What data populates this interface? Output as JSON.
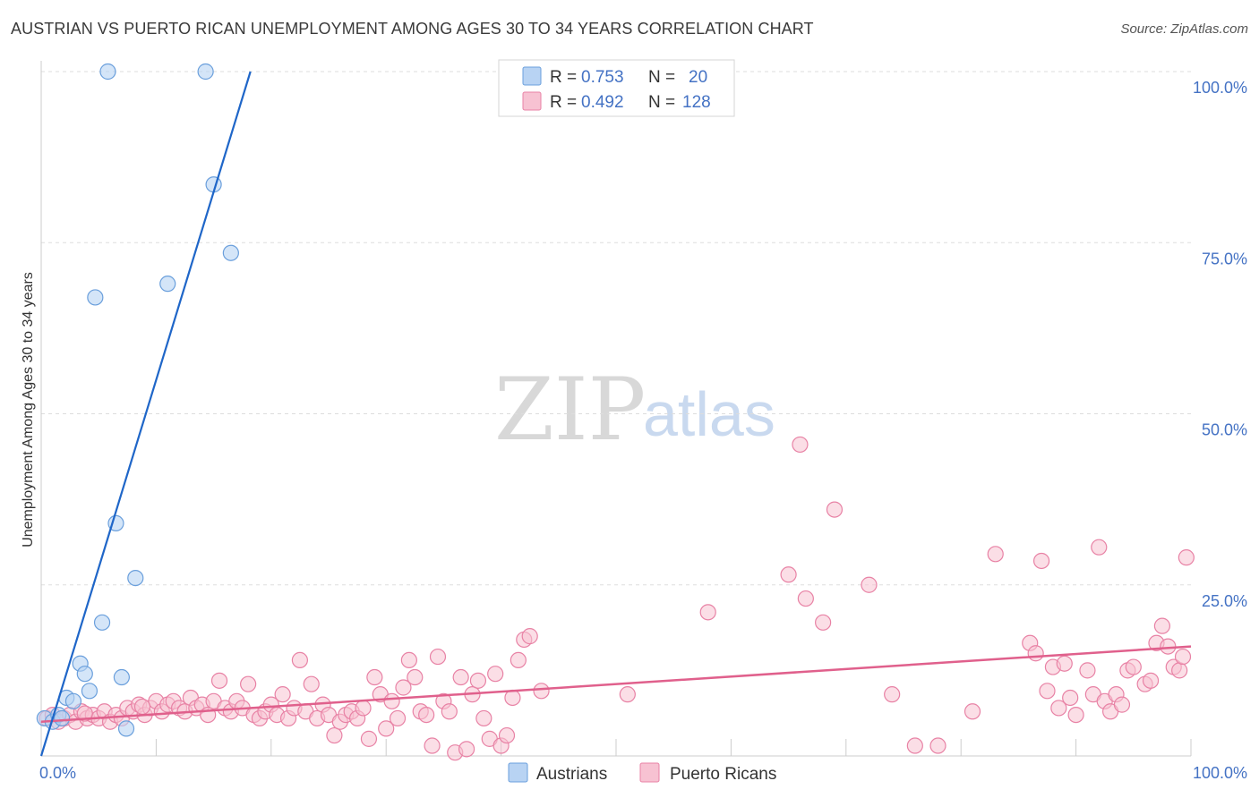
{
  "title": "AUSTRIAN VS PUERTO RICAN UNEMPLOYMENT AMONG AGES 30 TO 34 YEARS CORRELATION CHART",
  "source": "Source: ZipAtlas.com",
  "watermark": {
    "zip": "ZIP",
    "atlas": "atlas"
  },
  "colors": {
    "austrians_fill": "#b8d3f3",
    "austrians_stroke": "#6a9fdc",
    "austrians_line": "#1f66c8",
    "puerto_fill": "#f7c2d2",
    "puerto_stroke": "#e882a5",
    "puerto_line": "#e0608c",
    "grid": "#dddddd",
    "tick_text": "#4472c4"
  },
  "legend": {
    "rows": [
      {
        "r_label": "R =",
        "r_value": "0.753",
        "n_label": "N =",
        "n_value": "20"
      },
      {
        "r_label": "R =",
        "r_value": "0.492",
        "n_label": "N =",
        "n_value": "128"
      }
    ]
  },
  "chart_data": {
    "type": "scatter",
    "title": "AUSTRIAN VS PUERTO RICAN UNEMPLOYMENT AMONG AGES 30 TO 34 YEARS CORRELATION CHART",
    "xlabel": "",
    "ylabel": "Unemployment Among Ages 30 to 34 years",
    "xlim": [
      0,
      100
    ],
    "ylim": [
      0,
      100
    ],
    "x_tick_labels": [
      "0.0%",
      "100.0%"
    ],
    "y_tick_values": [
      25,
      50,
      75,
      100
    ],
    "y_tick_labels": [
      "25.0%",
      "50.0%",
      "75.0%",
      "100.0%"
    ],
    "grid": true,
    "series": [
      {
        "name": "Austrians",
        "r": 0.753,
        "n": 20,
        "trend": {
          "x": [
            0,
            18.2
          ],
          "y": [
            0,
            100
          ]
        },
        "points": [
          [
            0.3,
            5.5
          ],
          [
            1.0,
            5.0
          ],
          [
            1.5,
            6.0
          ],
          [
            2.2,
            8.5
          ],
          [
            2.8,
            8.0
          ],
          [
            3.4,
            13.5
          ],
          [
            3.8,
            12.0
          ],
          [
            4.2,
            9.5
          ],
          [
            4.7,
            67.0
          ],
          [
            5.3,
            19.5
          ],
          [
            5.8,
            100.0
          ],
          [
            6.5,
            34.0
          ],
          [
            7.0,
            11.5
          ],
          [
            7.4,
            4.0
          ],
          [
            8.2,
            26.0
          ],
          [
            11.0,
            69.0
          ],
          [
            14.3,
            100.0
          ],
          [
            15.0,
            83.5
          ],
          [
            16.5,
            73.5
          ],
          [
            1.8,
            5.5
          ]
        ]
      },
      {
        "name": "Puerto Ricans",
        "r": 0.492,
        "n": 128,
        "trend": {
          "x": [
            0,
            100
          ],
          "y": [
            5.0,
            16.0
          ]
        },
        "points": [
          [
            0.5,
            5.5
          ],
          [
            1.0,
            6.0
          ],
          [
            1.5,
            5.0
          ],
          [
            2.0,
            5.5
          ],
          [
            2.5,
            6.0
          ],
          [
            3.0,
            5.0
          ],
          [
            3.5,
            6.5
          ],
          [
            4.0,
            5.5
          ],
          [
            4.5,
            6.0
          ],
          [
            5.0,
            5.5
          ],
          [
            5.5,
            6.5
          ],
          [
            6.0,
            5.0
          ],
          [
            6.5,
            6.0
          ],
          [
            7.0,
            5.5
          ],
          [
            7.5,
            7.0
          ],
          [
            8.0,
            6.5
          ],
          [
            8.5,
            7.5
          ],
          [
            9.0,
            6.0
          ],
          [
            9.5,
            7.0
          ],
          [
            10.0,
            8.0
          ],
          [
            10.5,
            6.5
          ],
          [
            11.0,
            7.5
          ],
          [
            11.5,
            8.0
          ],
          [
            12.0,
            7.0
          ],
          [
            12.5,
            6.5
          ],
          [
            13.0,
            8.5
          ],
          [
            13.5,
            7.0
          ],
          [
            14.0,
            7.5
          ],
          [
            14.5,
            6.0
          ],
          [
            15.0,
            8.0
          ],
          [
            15.5,
            11.0
          ],
          [
            16.0,
            7.0
          ],
          [
            16.5,
            6.5
          ],
          [
            17.0,
            8.0
          ],
          [
            17.5,
            7.0
          ],
          [
            18.0,
            10.5
          ],
          [
            18.5,
            6.0
          ],
          [
            19.0,
            5.5
          ],
          [
            19.5,
            6.5
          ],
          [
            20.0,
            7.5
          ],
          [
            20.5,
            6.0
          ],
          [
            21.0,
            9.0
          ],
          [
            21.5,
            5.5
          ],
          [
            22.0,
            7.0
          ],
          [
            22.5,
            14.0
          ],
          [
            23.0,
            6.5
          ],
          [
            23.5,
            10.5
          ],
          [
            24.0,
            5.5
          ],
          [
            24.5,
            7.5
          ],
          [
            25.0,
            6.0
          ],
          [
            25.5,
            3.0
          ],
          [
            26.0,
            5.0
          ],
          [
            26.5,
            6.0
          ],
          [
            27.0,
            6.5
          ],
          [
            27.5,
            5.5
          ],
          [
            28.0,
            7.0
          ],
          [
            28.5,
            2.5
          ],
          [
            29.0,
            11.5
          ],
          [
            29.5,
            9.0
          ],
          [
            30.0,
            4.0
          ],
          [
            30.5,
            8.0
          ],
          [
            31.0,
            5.5
          ],
          [
            31.5,
            10.0
          ],
          [
            32.0,
            14.0
          ],
          [
            32.5,
            11.5
          ],
          [
            33.0,
            6.5
          ],
          [
            33.5,
            6.0
          ],
          [
            34.0,
            1.5
          ],
          [
            34.5,
            14.5
          ],
          [
            35.0,
            8.0
          ],
          [
            35.5,
            6.5
          ],
          [
            36.0,
            0.5
          ],
          [
            36.5,
            11.5
          ],
          [
            37.0,
            1.0
          ],
          [
            37.5,
            9.0
          ],
          [
            38.0,
            11.0
          ],
          [
            38.5,
            5.5
          ],
          [
            39.0,
            2.5
          ],
          [
            39.5,
            12.0
          ],
          [
            40.0,
            1.5
          ],
          [
            40.5,
            3.0
          ],
          [
            41.0,
            8.5
          ],
          [
            41.5,
            14.0
          ],
          [
            42.0,
            17.0
          ],
          [
            42.5,
            17.5
          ],
          [
            43.5,
            9.5
          ],
          [
            51.0,
            9.0
          ],
          [
            58.0,
            21.0
          ],
          [
            65.0,
            26.5
          ],
          [
            66.5,
            23.0
          ],
          [
            68.0,
            19.5
          ],
          [
            66.0,
            45.5
          ],
          [
            69.0,
            36.0
          ],
          [
            72.0,
            25.0
          ],
          [
            74.0,
            9.0
          ],
          [
            76.0,
            1.5
          ],
          [
            78.0,
            1.5
          ],
          [
            81.0,
            6.5
          ],
          [
            83.0,
            29.5
          ],
          [
            86.0,
            16.5
          ],
          [
            86.5,
            15.0
          ],
          [
            87.0,
            28.5
          ],
          [
            87.5,
            9.5
          ],
          [
            88.0,
            13.0
          ],
          [
            88.5,
            7.0
          ],
          [
            89.0,
            13.5
          ],
          [
            89.5,
            8.5
          ],
          [
            90.0,
            6.0
          ],
          [
            91.0,
            12.5
          ],
          [
            91.5,
            9.0
          ],
          [
            92.0,
            30.5
          ],
          [
            92.5,
            8.0
          ],
          [
            93.0,
            6.5
          ],
          [
            93.5,
            9.0
          ],
          [
            94.0,
            7.5
          ],
          [
            94.5,
            12.5
          ],
          [
            95.0,
            13.0
          ],
          [
            96.0,
            10.5
          ],
          [
            96.5,
            11.0
          ],
          [
            97.0,
            16.5
          ],
          [
            97.5,
            19.0
          ],
          [
            98.0,
            16.0
          ],
          [
            98.5,
            13.0
          ],
          [
            99.0,
            12.5
          ],
          [
            99.3,
            14.5
          ],
          [
            99.6,
            29.0
          ],
          [
            3.8,
            6.2
          ],
          [
            8.8,
            7.2
          ]
        ]
      }
    ]
  },
  "bottom_legend": {
    "items": [
      {
        "label": "Austrians"
      },
      {
        "label": "Puerto Ricans"
      }
    ]
  }
}
